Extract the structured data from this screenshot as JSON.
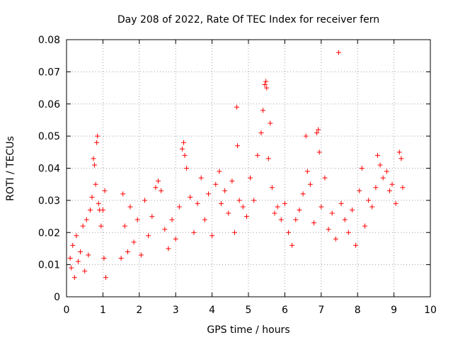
{
  "chart_data": {
    "type": "scatter",
    "title": "Day 208 of 2022, Rate Of TEC Index for receiver fern",
    "xlabel": "GPS time / hours",
    "ylabel": "ROTI / TECUs",
    "xlim": [
      0,
      10
    ],
    "ylim": [
      0,
      0.08
    ],
    "x_ticks": [
      "0",
      "1",
      "2",
      "3",
      "4",
      "5",
      "6",
      "7",
      "8",
      "9",
      "10"
    ],
    "y_ticks": [
      "0",
      "0.01",
      "0.02",
      "0.03",
      "0.04",
      "0.05",
      "0.06",
      "0.07",
      "0.08"
    ],
    "grid": true,
    "marker": "+",
    "color": "#ff0000",
    "series": [
      {
        "values": [
          [
            0.1,
            0.012
          ],
          [
            0.13,
            0.009
          ],
          [
            0.17,
            0.016
          ],
          [
            0.22,
            0.006
          ],
          [
            0.27,
            0.019
          ],
          [
            0.32,
            0.011
          ],
          [
            0.38,
            0.014
          ],
          [
            0.45,
            0.022
          ],
          [
            0.5,
            0.008
          ],
          [
            0.55,
            0.024
          ],
          [
            0.6,
            0.013
          ],
          [
            0.65,
            0.027
          ],
          [
            0.7,
            0.031
          ],
          [
            0.74,
            0.043
          ],
          [
            0.77,
            0.041
          ],
          [
            0.8,
            0.035
          ],
          [
            0.83,
            0.048
          ],
          [
            0.85,
            0.05
          ],
          [
            0.88,
            0.029
          ],
          [
            0.91,
            0.027
          ],
          [
            0.95,
            0.022
          ],
          [
            1.0,
            0.027
          ],
          [
            1.03,
            0.012
          ],
          [
            1.05,
            0.033
          ],
          [
            1.08,
            0.006
          ],
          [
            1.5,
            0.012
          ],
          [
            1.55,
            0.032
          ],
          [
            1.6,
            0.022
          ],
          [
            1.68,
            0.014
          ],
          [
            1.75,
            0.028
          ],
          [
            1.85,
            0.017
          ],
          [
            1.95,
            0.024
          ],
          [
            2.05,
            0.013
          ],
          [
            2.15,
            0.03
          ],
          [
            2.25,
            0.019
          ],
          [
            2.35,
            0.025
          ],
          [
            2.45,
            0.034
          ],
          [
            2.52,
            0.036
          ],
          [
            2.6,
            0.033
          ],
          [
            2.7,
            0.021
          ],
          [
            2.8,
            0.015
          ],
          [
            2.9,
            0.024
          ],
          [
            3.0,
            0.018
          ],
          [
            3.1,
            0.028
          ],
          [
            3.18,
            0.046
          ],
          [
            3.22,
            0.048
          ],
          [
            3.25,
            0.044
          ],
          [
            3.3,
            0.04
          ],
          [
            3.4,
            0.031
          ],
          [
            3.5,
            0.02
          ],
          [
            3.6,
            0.029
          ],
          [
            3.7,
            0.037
          ],
          [
            3.8,
            0.024
          ],
          [
            3.9,
            0.032
          ],
          [
            4.0,
            0.019
          ],
          [
            4.1,
            0.035
          ],
          [
            4.2,
            0.039
          ],
          [
            4.25,
            0.029
          ],
          [
            4.35,
            0.033
          ],
          [
            4.45,
            0.026
          ],
          [
            4.55,
            0.036
          ],
          [
            4.62,
            0.02
          ],
          [
            4.68,
            0.059
          ],
          [
            4.7,
            0.047
          ],
          [
            4.75,
            0.03
          ],
          [
            4.85,
            0.028
          ],
          [
            4.95,
            0.025
          ],
          [
            5.05,
            0.037
          ],
          [
            5.15,
            0.03
          ],
          [
            5.25,
            0.044
          ],
          [
            5.35,
            0.051
          ],
          [
            5.4,
            0.058
          ],
          [
            5.45,
            0.066
          ],
          [
            5.48,
            0.067
          ],
          [
            5.5,
            0.065
          ],
          [
            5.55,
            0.043
          ],
          [
            5.6,
            0.054
          ],
          [
            5.65,
            0.034
          ],
          [
            5.72,
            0.026
          ],
          [
            5.8,
            0.028
          ],
          [
            5.9,
            0.024
          ],
          [
            6.0,
            0.029
          ],
          [
            6.1,
            0.02
          ],
          [
            6.2,
            0.016
          ],
          [
            6.3,
            0.024
          ],
          [
            6.4,
            0.027
          ],
          [
            6.5,
            0.032
          ],
          [
            6.58,
            0.05
          ],
          [
            6.62,
            0.039
          ],
          [
            6.7,
            0.035
          ],
          [
            6.8,
            0.023
          ],
          [
            6.88,
            0.051
          ],
          [
            6.92,
            0.052
          ],
          [
            6.95,
            0.045
          ],
          [
            7.0,
            0.028
          ],
          [
            7.1,
            0.037
          ],
          [
            7.2,
            0.021
          ],
          [
            7.3,
            0.026
          ],
          [
            7.4,
            0.018
          ],
          [
            7.48,
            0.076
          ],
          [
            7.55,
            0.029
          ],
          [
            7.65,
            0.024
          ],
          [
            7.75,
            0.02
          ],
          [
            7.85,
            0.027
          ],
          [
            7.95,
            0.016
          ],
          [
            8.05,
            0.033
          ],
          [
            8.12,
            0.04
          ],
          [
            8.2,
            0.022
          ],
          [
            8.3,
            0.03
          ],
          [
            8.4,
            0.028
          ],
          [
            8.5,
            0.034
          ],
          [
            8.55,
            0.044
          ],
          [
            8.62,
            0.041
          ],
          [
            8.7,
            0.037
          ],
          [
            8.8,
            0.039
          ],
          [
            8.88,
            0.033
          ],
          [
            8.95,
            0.035
          ],
          [
            9.05,
            0.029
          ],
          [
            9.15,
            0.045
          ],
          [
            9.2,
            0.043
          ],
          [
            9.24,
            0.034
          ]
        ]
      }
    ]
  }
}
